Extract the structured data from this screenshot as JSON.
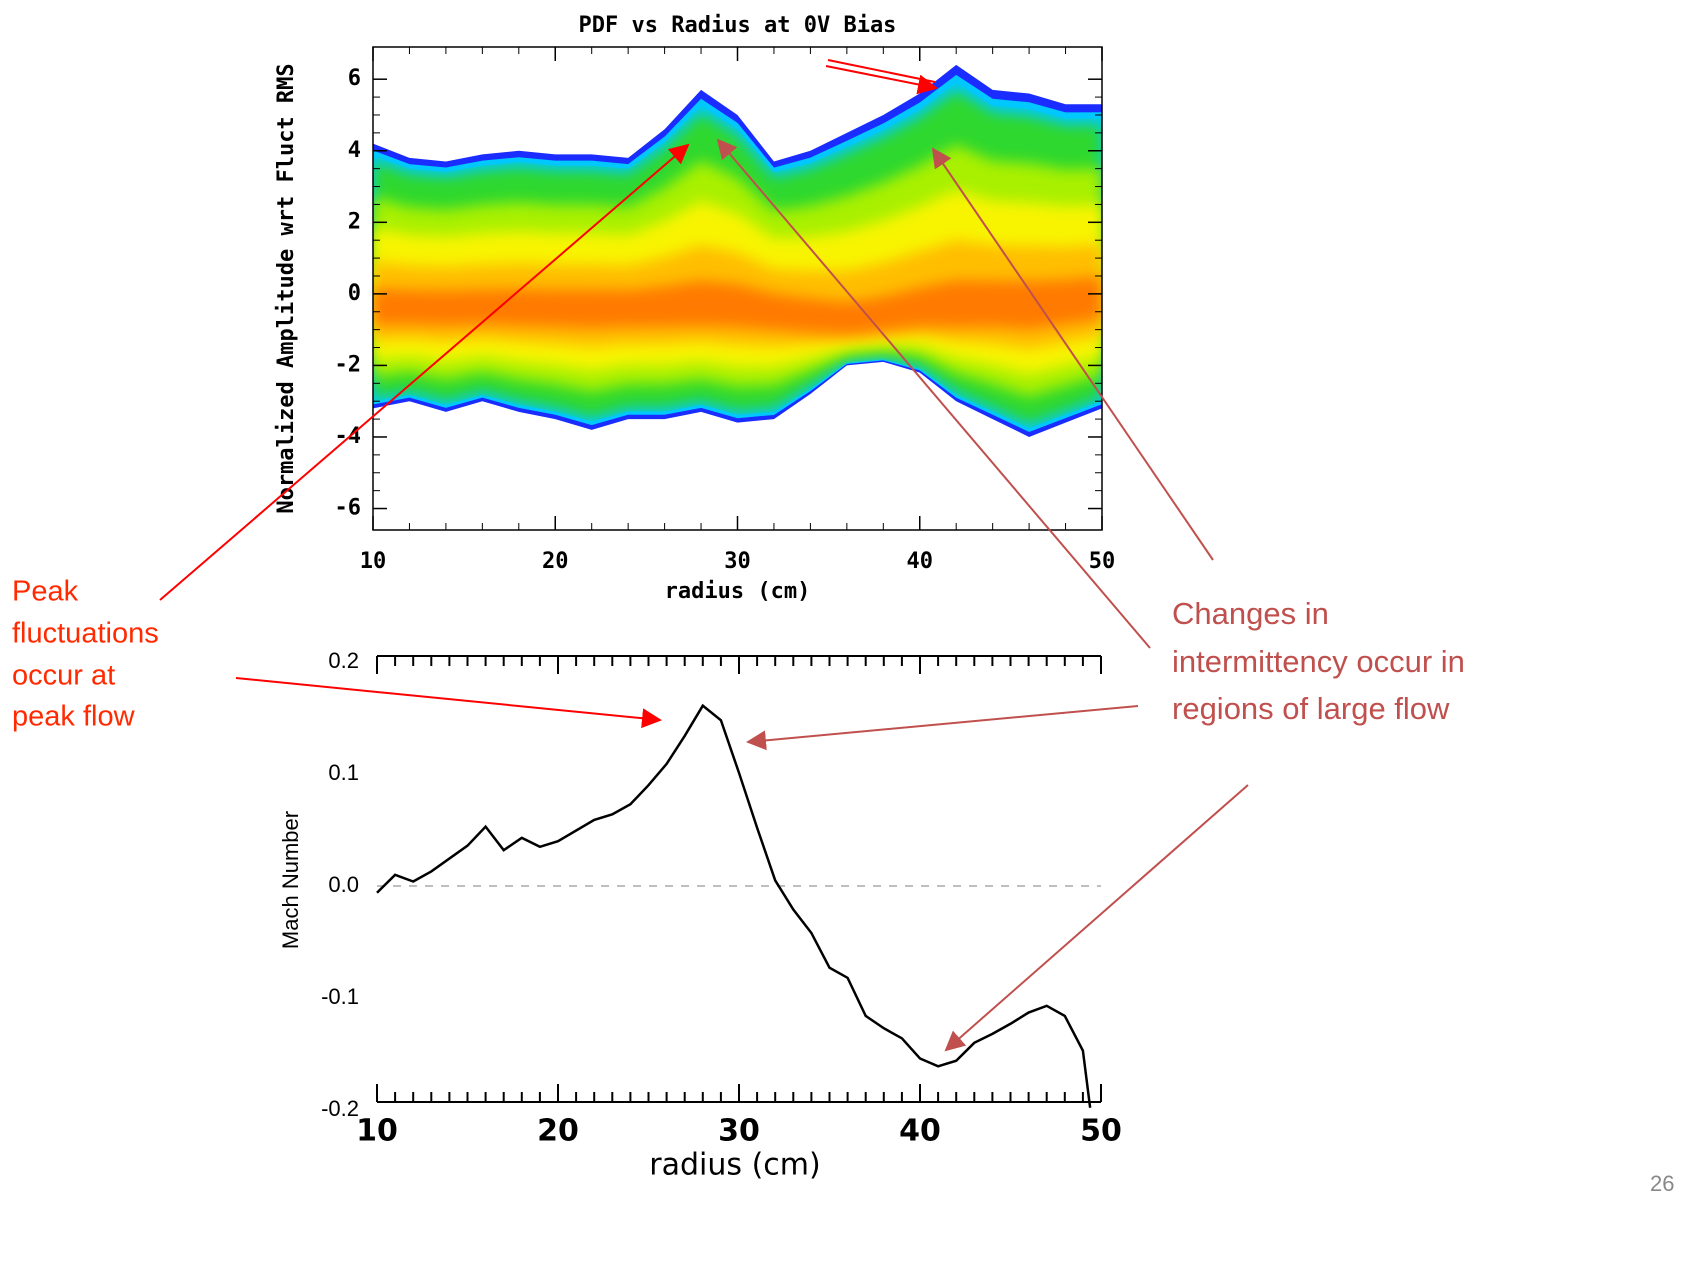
{
  "chart_data": [
    {
      "type": "heatmap",
      "title": "PDF vs Radius at 0V Bias",
      "xlabel": "radius (cm)",
      "ylabel": "Normalized Amplitude wrt Fluct RMS",
      "x": [
        10,
        12,
        14,
        16,
        18,
        20,
        22,
        24,
        26,
        28,
        30,
        32,
        34,
        36,
        38,
        40,
        42,
        44,
        46,
        48,
        50
      ],
      "upper": [
        4.2,
        3.8,
        3.7,
        3.9,
        4.0,
        3.9,
        3.9,
        3.8,
        4.6,
        5.7,
        5.0,
        3.7,
        4.0,
        4.5,
        5.0,
        5.6,
        6.4,
        5.7,
        5.6,
        5.3,
        5.3
      ],
      "lower": [
        -3.2,
        -3.0,
        -3.3,
        -3.0,
        -3.3,
        -3.5,
        -3.8,
        -3.5,
        -3.5,
        -3.3,
        -3.6,
        -3.5,
        -2.8,
        -2.0,
        -1.9,
        -2.2,
        -3.0,
        -3.5,
        -4.0,
        -3.6,
        -3.2
      ],
      "center": [
        -0.5,
        -0.5,
        -0.5,
        -0.5,
        -0.5,
        -0.5,
        -0.5,
        -0.5,
        -0.5,
        -0.5,
        -0.5,
        -0.6,
        -0.8,
        -1.0,
        -0.9,
        -0.7,
        -0.6,
        -0.5,
        -0.5,
        -0.4,
        -0.3
      ],
      "xlim": [
        10,
        50
      ],
      "ylim": [
        -6.6,
        6.9
      ],
      "xticks": [
        10,
        20,
        30,
        40,
        50
      ],
      "yticks": [
        -6,
        -4,
        -2,
        0,
        2,
        4,
        6
      ]
    },
    {
      "type": "line",
      "xlabel": "radius (cm)",
      "ylabel": "Mach Number",
      "x": [
        10,
        11,
        12,
        13,
        15,
        16,
        17,
        18,
        19,
        20,
        22,
        23,
        24,
        25,
        26,
        27,
        28,
        29,
        30,
        31,
        32,
        33,
        34,
        35,
        36,
        37,
        38,
        39,
        40,
        41,
        42,
        43,
        44,
        45,
        46,
        47,
        48,
        49,
        49.4
      ],
      "series": [
        {
          "color": "#000000",
          "values": [
            -0.006,
            0.01,
            0.004,
            0.013,
            0.036,
            0.053,
            0.032,
            0.043,
            0.035,
            0.04,
            0.059,
            0.064,
            0.073,
            0.09,
            0.109,
            0.134,
            0.161,
            0.148,
            0.101,
            0.052,
            0.005,
            -0.021,
            -0.042,
            -0.073,
            -0.082,
            -0.116,
            -0.127,
            -0.136,
            -0.154,
            -0.161,
            -0.156,
            -0.14,
            -0.132,
            -0.123,
            -0.113,
            -0.107,
            -0.116,
            -0.147,
            -0.198
          ]
        }
      ],
      "xlim": [
        10,
        50
      ],
      "ylim": [
        -0.2,
        0.2
      ],
      "xticks": [
        10,
        20,
        30,
        40,
        50
      ],
      "yticks": [
        -0.2,
        -0.1,
        {
          "value": 0,
          "label": "0.0"
        },
        0.1,
        0.2
      ],
      "reference_line": 0
    }
  ],
  "annotations": [
    {
      "text": [
        "Peak",
        "fluctuations",
        "occur at",
        "peak flow"
      ]
    },
    {
      "text": [
        "Changes in",
        "intermittency occur in",
        "regions of large flow"
      ]
    }
  ],
  "page_number": "26"
}
